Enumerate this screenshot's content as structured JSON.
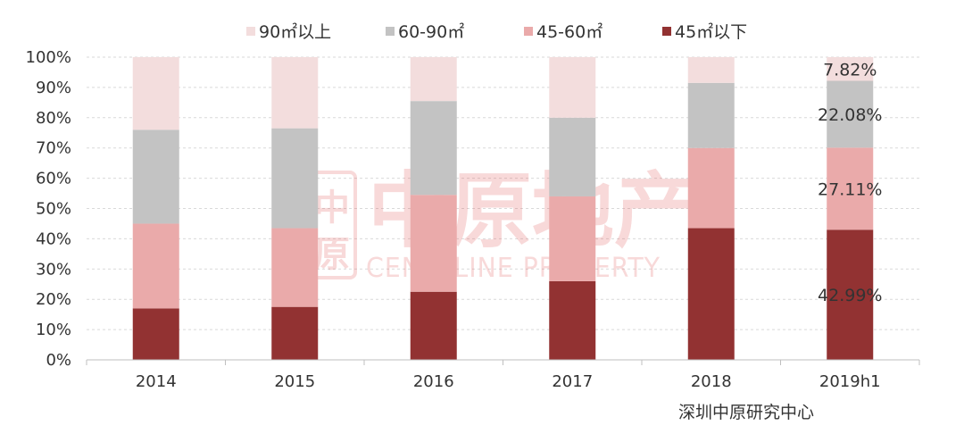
{
  "chart_data": {
    "type": "bar",
    "stacked": true,
    "categories": [
      "2014",
      "2015",
      "2016",
      "2017",
      "2018",
      "2019h1"
    ],
    "series": [
      {
        "name": "45㎡以下",
        "color": "#923232",
        "values": [
          17,
          17.5,
          22.5,
          26,
          43.5,
          42.99
        ]
      },
      {
        "name": "45-60㎡",
        "color": "#eaaaaa",
        "values": [
          28,
          26,
          32,
          28,
          26.5,
          27.11
        ]
      },
      {
        "name": "60-90㎡",
        "color": "#c3c3c3",
        "values": [
          31,
          33,
          31,
          26,
          21.5,
          22.08
        ]
      },
      {
        "name": "90㎡以上",
        "color": "#f3dddd",
        "values": [
          24,
          23.5,
          14.5,
          20,
          8.5,
          7.82
        ]
      }
    ],
    "legend_order": [
      "90㎡以上",
      "60-90㎡",
      "45-60㎡",
      "45㎡以下"
    ],
    "data_labels": [
      {
        "category": "2019h1",
        "series": "45㎡以下",
        "text": "42.99%"
      },
      {
        "category": "2019h1",
        "series": "45-60㎡",
        "text": "27.11%"
      },
      {
        "category": "2019h1",
        "series": "60-90㎡",
        "text": "22.08%"
      },
      {
        "category": "2019h1",
        "series": "90㎡以上",
        "text": "7.82%"
      }
    ],
    "yticks": [
      "0%",
      "10%",
      "20%",
      "30%",
      "40%",
      "50%",
      "60%",
      "70%",
      "80%",
      "90%",
      "100%"
    ],
    "ylim": [
      0,
      100
    ],
    "grid": true,
    "legend_position": "top"
  },
  "watermark": {
    "chinese": "中原地产",
    "english": "CENTALINE PROPERTY",
    "logo_glyphs": "中原"
  },
  "source_note": "深圳中原研究中心"
}
